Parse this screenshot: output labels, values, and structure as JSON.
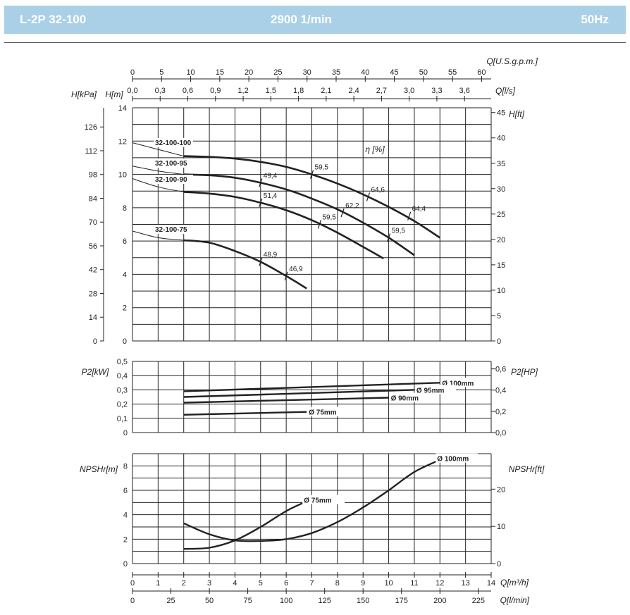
{
  "header": {
    "model": "L-2P 32-100",
    "speed": "2900 1/min",
    "frequency": "50Hz"
  },
  "chart_data": [
    {
      "type": "line",
      "title": "",
      "xlabel": "Q[m³/h]",
      "xlabel_lmin": "Q[l/min]",
      "xlabel_usgpm": "Q[U.S.g.p.m.]",
      "xlabel_ls": "Q[l/s]",
      "ylabel": "H[m]",
      "ylabel_kpa": "H[kPa]",
      "ylabel_ft": "H[ft]",
      "eta_label": "η [%]",
      "xlim": [
        0,
        14
      ],
      "ylim": [
        0,
        14
      ],
      "x_ticks": [
        "0",
        "1",
        "2",
        "3",
        "4",
        "5",
        "6",
        "7",
        "8",
        "9",
        "10",
        "11",
        "12",
        "13",
        "14"
      ],
      "lmin_ticks": [
        "0",
        "25",
        "50",
        "75",
        "100",
        "125",
        "150",
        "175",
        "200",
        "225"
      ],
      "usgpm_ticks": [
        "0",
        "5",
        "10",
        "15",
        "20",
        "25",
        "30",
        "35",
        "40",
        "45",
        "50",
        "55",
        "60"
      ],
      "ls_ticks": [
        "0,0",
        "0,3",
        "0,6",
        "0,9",
        "1,2",
        "1,5",
        "1,8",
        "2,1",
        "2,4",
        "2,7",
        "3,0",
        "3,3",
        "3,6"
      ],
      "y_ticks": [
        "0",
        "2",
        "4",
        "6",
        "8",
        "10",
        "12",
        "14"
      ],
      "kpa_ticks": [
        "0",
        "14",
        "28",
        "42",
        "56",
        "70",
        "84",
        "98",
        "112",
        "126"
      ],
      "ft_ticks": [
        "0",
        "5",
        "10",
        "15",
        "20",
        "25",
        "30",
        "35",
        "40",
        "45"
      ],
      "series": [
        {
          "name": "32-100-100",
          "x": [
            0,
            1,
            2,
            3,
            4,
            5,
            6,
            7,
            8,
            9,
            10,
            11,
            12
          ],
          "y": [
            11.9,
            11.5,
            11.1,
            11.05,
            10.95,
            10.75,
            10.45,
            10.0,
            9.45,
            8.8,
            8.05,
            7.2,
            6.2
          ]
        },
        {
          "name": "32-100-95",
          "x": [
            0,
            1,
            2,
            3,
            4,
            5,
            6,
            7,
            8,
            9,
            10,
            11
          ],
          "y": [
            10.5,
            10.2,
            10.0,
            9.95,
            9.8,
            9.5,
            9.1,
            8.55,
            7.9,
            7.1,
            6.2,
            5.15
          ]
        },
        {
          "name": "32-100-90",
          "x": [
            0,
            1,
            2,
            3,
            4,
            5,
            6,
            7,
            8,
            9,
            9.8
          ],
          "y": [
            9.75,
            9.25,
            8.95,
            8.85,
            8.65,
            8.3,
            7.85,
            7.25,
            6.5,
            5.65,
            4.95
          ]
        },
        {
          "name": "32-100-75",
          "x": [
            0,
            1,
            2,
            3,
            4,
            5,
            6,
            6.8
          ],
          "y": [
            6.6,
            6.2,
            6.05,
            5.9,
            5.4,
            4.75,
            3.9,
            3.15
          ]
        }
      ],
      "efficiency_marks": [
        {
          "label": "59,5",
          "x": 7.0,
          "y": 10.0
        },
        {
          "label": "64,6",
          "x": 9.2,
          "y": 8.65
        },
        {
          "label": "64,4",
          "x": 10.8,
          "y": 7.5
        },
        {
          "label": "49,4",
          "x": 5.0,
          "y": 9.5
        },
        {
          "label": "62,2",
          "x": 8.2,
          "y": 7.7
        },
        {
          "label": "59,5",
          "x": 10.0,
          "y": 6.2
        },
        {
          "label": "51,4",
          "x": 5.0,
          "y": 8.3
        },
        {
          "label": "59,5",
          "x": 7.3,
          "y": 7.0
        },
        {
          "label": "48,9",
          "x": 5.0,
          "y": 4.75
        },
        {
          "label": "46,9",
          "x": 6.0,
          "y": 3.9
        }
      ]
    },
    {
      "type": "line",
      "title": "",
      "xlabel": "",
      "ylabel": "P2[kW]",
      "ylabel_right": "P2[HP]",
      "xlim": [
        0,
        14
      ],
      "ylim": [
        0,
        0.5
      ],
      "y_ticks": [
        "0",
        "0,1",
        "0,2",
        "0,3",
        "0,4",
        "0,5"
      ],
      "hp_ticks": [
        "0,0",
        "0,2",
        "0,4",
        "0,6"
      ],
      "series": [
        {
          "name": "Ø 100mm",
          "x": [
            2,
            12
          ],
          "y": [
            0.29,
            0.35
          ]
        },
        {
          "name": "Ø 95mm",
          "x": [
            2,
            11
          ],
          "y": [
            0.25,
            0.3
          ]
        },
        {
          "name": "Ø 90mm",
          "x": [
            2,
            10
          ],
          "y": [
            0.21,
            0.245
          ]
        },
        {
          "name": "Ø 75mm",
          "x": [
            2,
            6.8
          ],
          "y": [
            0.125,
            0.145
          ]
        }
      ]
    },
    {
      "type": "line",
      "title": "",
      "xlabel": "",
      "ylabel": "NPSHr[m]",
      "ylabel_right": "NPSHr[ft]",
      "xlim": [
        0,
        14
      ],
      "ylim": [
        0,
        9
      ],
      "y_ticks": [
        "0",
        "2",
        "4",
        "6",
        "8"
      ],
      "ft_ticks": [
        "0",
        "10",
        "20"
      ],
      "series": [
        {
          "name": "Ø 100mm",
          "x": [
            2,
            3,
            4,
            5,
            6,
            7,
            8,
            9,
            10,
            11,
            12
          ],
          "y": [
            3.3,
            2.4,
            1.9,
            1.85,
            2.0,
            2.5,
            3.4,
            4.6,
            6.0,
            7.5,
            8.5
          ]
        },
        {
          "name": "Ø 75mm",
          "x": [
            2,
            3,
            4,
            5,
            6,
            6.8
          ],
          "y": [
            1.2,
            1.3,
            1.9,
            3.0,
            4.3,
            5.1
          ]
        }
      ]
    }
  ]
}
